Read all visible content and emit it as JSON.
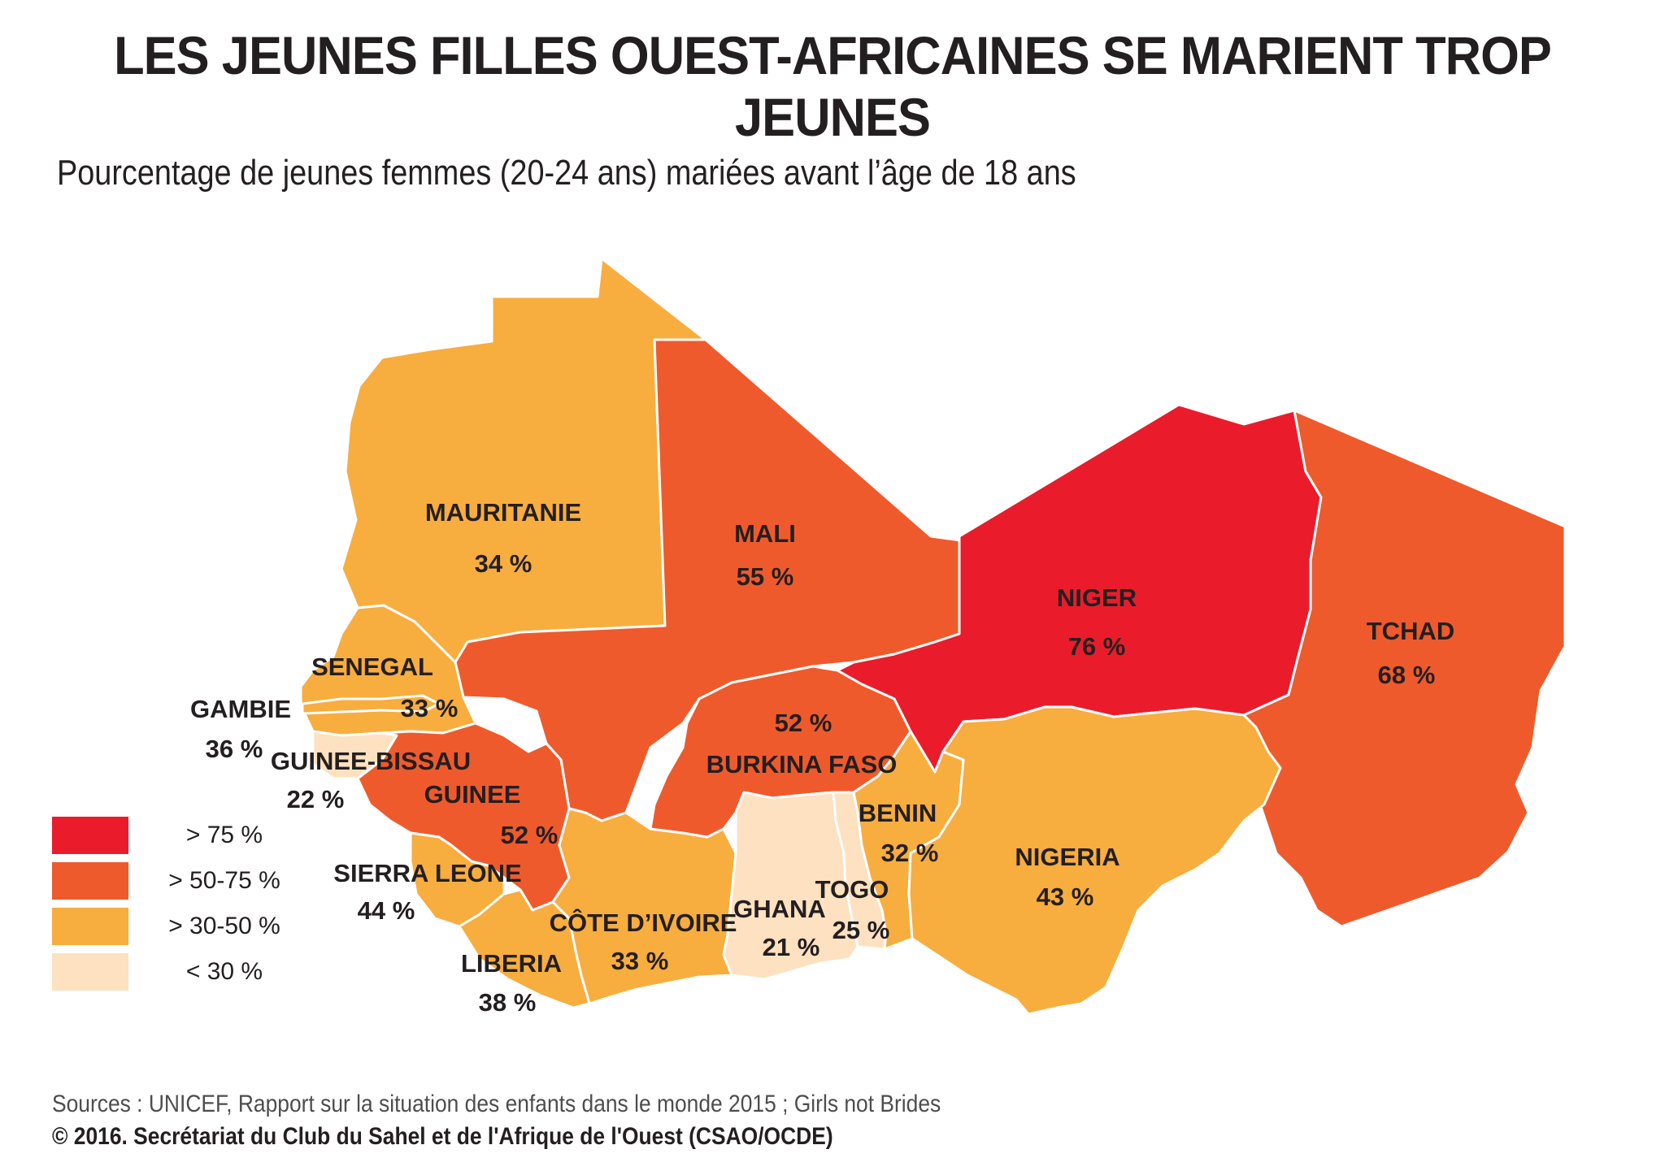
{
  "title": "LES JEUNES FILLES OUEST-AFRICAINES SE MARIENT TROP JEUNES",
  "subtitle": "Pourcentage de jeunes femmes (20-24 ans) mariées avant l’âge de 18 ans",
  "colors": {
    "gt75": "#ea1c2b",
    "c50_75": "#ef5a2c",
    "c30_50": "#f8ad3f",
    "lt30": "#fde1c0"
  },
  "countries": [
    {
      "id": "mauritanie",
      "name": "MAURITANIE",
      "value": "34 %",
      "category": "c30_50"
    },
    {
      "id": "mali",
      "name": "MALI",
      "value": "55 %",
      "category": "c50_75"
    },
    {
      "id": "niger",
      "name": "NIGER",
      "value": "76 %",
      "category": "gt75"
    },
    {
      "id": "tchad",
      "name": "TCHAD",
      "value": "68 %",
      "category": "c50_75"
    },
    {
      "id": "senegal",
      "name": "SENEGAL",
      "value": "33 %",
      "category": "c30_50"
    },
    {
      "id": "gambie",
      "name": "GAMBIE",
      "value": "36 %",
      "category": "c30_50"
    },
    {
      "id": "guinee-bissau",
      "name": "GUINEE-BISSAU",
      "value": "22 %",
      "category": "lt30"
    },
    {
      "id": "guinee",
      "name": "GUINEE",
      "value": "52 %",
      "category": "c50_75"
    },
    {
      "id": "sierra-leone",
      "name": "SIERRA LEONE",
      "value": "44 %",
      "category": "c30_50"
    },
    {
      "id": "liberia",
      "name": "LIBERIA",
      "value": "38 %",
      "category": "c30_50"
    },
    {
      "id": "cote-divoire",
      "name": "CÔTE D’IVOIRE",
      "value": "33 %",
      "category": "c30_50"
    },
    {
      "id": "burkina-faso",
      "name": "BURKINA FASO",
      "value": "52 %",
      "category": "c50_75"
    },
    {
      "id": "ghana",
      "name": "GHANA",
      "value": "21 %",
      "category": "lt30"
    },
    {
      "id": "togo",
      "name": "TOGO",
      "value": "25 %",
      "category": "lt30"
    },
    {
      "id": "benin",
      "name": "BENIN",
      "value": "32 %",
      "category": "c30_50"
    },
    {
      "id": "nigeria",
      "name": "NIGERIA",
      "value": "43 %",
      "category": "c30_50"
    }
  ],
  "legend": [
    {
      "label": "> 75 %",
      "category": "gt75"
    },
    {
      "label": "> 50-75 %",
      "category": "c50_75"
    },
    {
      "label": "> 30-50 %",
      "category": "c30_50"
    },
    {
      "label": "< 30 %",
      "category": "lt30"
    }
  ],
  "sources": "Sources : UNICEF, Rapport sur la situation des enfants dans le monde 2015 ; Girls not Brides",
  "copyright": "© 2016. Secrétariat du Club du Sahel et de l'Afrique de l'Ouest (CSAO/OCDE)"
}
